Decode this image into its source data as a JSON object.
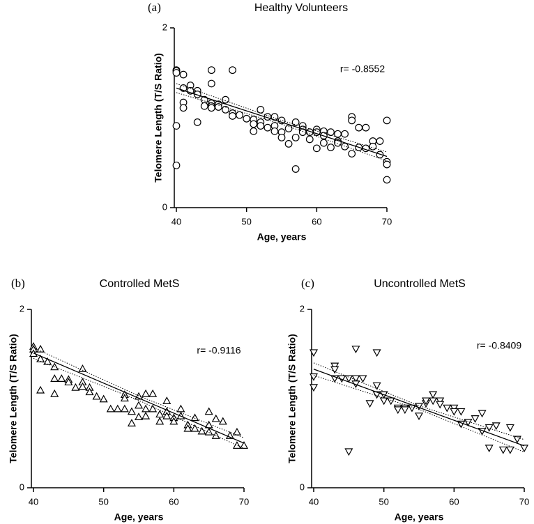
{
  "chart_data": [
    {
      "type": "scatter",
      "panel_label": "(a)",
      "title": "Healthy Volunteers",
      "xlabel": "Age, years",
      "ylabel": "Telomere Length (T/S Ratio)",
      "annotation": "r= -0.8552",
      "marker": "circle",
      "color": "#000000",
      "xlim": [
        40,
        70
      ],
      "ylim": [
        0,
        2
      ],
      "xticks": [
        40,
        50,
        60,
        70
      ],
      "yticks": [
        0,
        2
      ],
      "x": [
        40,
        40,
        40,
        40,
        40,
        41,
        41,
        41,
        41,
        42,
        42,
        43,
        43,
        43,
        44,
        44,
        45,
        45,
        45,
        45,
        45,
        46,
        46,
        47,
        47,
        48,
        48,
        48,
        49,
        50,
        51,
        51,
        51,
        52,
        52,
        52,
        53,
        53,
        54,
        54,
        54,
        55,
        55,
        55,
        56,
        56,
        57,
        57,
        57,
        58,
        58,
        58,
        59,
        59,
        60,
        60,
        60,
        61,
        61,
        61,
        62,
        62,
        63,
        63,
        63,
        64,
        64,
        65,
        65,
        65,
        66,
        66,
        67,
        67,
        68,
        68,
        69,
        69,
        70,
        70,
        70,
        70
      ],
      "y": [
        1.53,
        1.52,
        1.5,
        0.91,
        0.47,
        1.48,
        1.33,
        1.17,
        1.11,
        1.36,
        1.3,
        1.3,
        1.26,
        0.95,
        1.2,
        1.13,
        1.53,
        1.38,
        1.16,
        1.13,
        1.11,
        1.15,
        1.12,
        1.2,
        1.09,
        1.53,
        1.05,
        1.02,
        1.03,
        0.99,
        0.98,
        0.93,
        0.85,
        1.09,
        0.95,
        0.91,
        1.01,
        0.89,
        1.01,
        0.91,
        0.85,
        0.97,
        0.84,
        0.78,
        0.88,
        0.71,
        0.95,
        0.78,
        0.43,
        0.91,
        0.87,
        0.84,
        0.84,
        0.76,
        0.87,
        0.84,
        0.66,
        0.85,
        0.8,
        0.72,
        0.84,
        0.67,
        0.82,
        0.74,
        0.72,
        0.82,
        0.68,
        1.01,
        0.97,
        0.6,
        0.89,
        0.67,
        0.89,
        0.66,
        0.74,
        0.68,
        0.74,
        0.59,
        0.97,
        0.51,
        0.48,
        0.31
      ],
      "fit": {
        "x": [
          40,
          70
        ],
        "y": [
          1.33,
          0.57
        ]
      },
      "band": {
        "x": [
          40,
          55,
          70
        ],
        "upper": [
          1.38,
          0.97,
          0.62
        ],
        "lower": [
          1.28,
          0.93,
          0.52
        ]
      }
    },
    {
      "type": "scatter",
      "panel_label": "(b)",
      "title": "Controlled MetS",
      "xlabel": "Age, years",
      "ylabel": "Telomere Length (T/S Ratio)",
      "annotation": "r= -0.9116",
      "marker": "triangle-up",
      "color": "#000000",
      "xlim": [
        40,
        70
      ],
      "ylim": [
        0,
        2
      ],
      "xticks": [
        40,
        50,
        60,
        70
      ],
      "yticks": [
        0,
        2
      ],
      "x": [
        40,
        40,
        40,
        41,
        41,
        41,
        42,
        43,
        43,
        43,
        44,
        45,
        45,
        46,
        47,
        47,
        47,
        48,
        48,
        49,
        50,
        51,
        52,
        53,
        53,
        53,
        54,
        54,
        55,
        55,
        55,
        56,
        56,
        56,
        57,
        57,
        58,
        58,
        59,
        59,
        59,
        60,
        60,
        61,
        61,
        62,
        62,
        63,
        63,
        64,
        65,
        65,
        65,
        66,
        66,
        67,
        68,
        69,
        69,
        70
      ],
      "y": [
        1.58,
        1.55,
        1.5,
        1.55,
        1.44,
        1.09,
        1.41,
        1.35,
        1.22,
        1.05,
        1.22,
        1.21,
        1.18,
        1.12,
        1.33,
        1.18,
        1.13,
        1.12,
        1.07,
        1.02,
        0.99,
        0.88,
        0.88,
        1.04,
        1.0,
        0.88,
        0.85,
        0.72,
        1.02,
        0.92,
        0.79,
        1.05,
        0.88,
        0.8,
        1.05,
        0.88,
        0.82,
        0.74,
        0.97,
        0.85,
        0.8,
        0.78,
        0.74,
        0.88,
        0.8,
        0.7,
        0.66,
        0.78,
        0.66,
        0.63,
        0.85,
        0.7,
        0.62,
        0.77,
        0.58,
        0.74,
        0.58,
        0.62,
        0.47,
        0.47
      ],
      "fit": {
        "x": [
          40,
          70
        ],
        "y": [
          1.51,
          0.5
        ]
      },
      "band": {
        "x": [
          40,
          55,
          70
        ],
        "upper": [
          1.57,
          1.03,
          0.56
        ],
        "lower": [
          1.45,
          0.98,
          0.44
        ]
      }
    },
    {
      "type": "scatter",
      "panel_label": "(c)",
      "title": "Uncontrolled MetS",
      "xlabel": "Age, years",
      "ylabel": "Telomere Length (T/S Ratio)",
      "annotation": "r= -0.8409",
      "marker": "triangle-down",
      "color": "#000000",
      "xlim": [
        40,
        70
      ],
      "ylim": [
        0,
        2
      ],
      "xticks": [
        40,
        50,
        60,
        70
      ],
      "yticks": [
        0,
        2
      ],
      "x": [
        40,
        40,
        40,
        43,
        43,
        43,
        44,
        45,
        45,
        46,
        46,
        46,
        47,
        48,
        49,
        49,
        49,
        50,
        50,
        51,
        52,
        52,
        53,
        53,
        54,
        55,
        55,
        56,
        56,
        57,
        57,
        58,
        58,
        59,
        60,
        60,
        61,
        61,
        62,
        63,
        64,
        64,
        65,
        65,
        66,
        67,
        68,
        68,
        69,
        70
      ],
      "y": [
        1.52,
        1.25,
        1.13,
        1.37,
        1.33,
        1.23,
        1.23,
        1.23,
        0.41,
        1.56,
        1.23,
        1.17,
        1.23,
        0.95,
        1.52,
        1.15,
        1.05,
        1.05,
        0.98,
        0.98,
        0.9,
        0.88,
        0.9,
        0.88,
        0.9,
        0.92,
        0.81,
        0.95,
        0.98,
        1.05,
        0.98,
        0.98,
        0.94,
        0.9,
        0.9,
        0.86,
        0.86,
        0.72,
        0.74,
        0.78,
        0.84,
        0.64,
        0.68,
        0.45,
        0.7,
        0.43,
        0.68,
        0.43,
        0.55,
        0.45
      ],
      "fit": {
        "x": [
          40,
          70
        ],
        "y": [
          1.33,
          0.47
        ]
      },
      "band": {
        "x": [
          40,
          55,
          70
        ],
        "upper": [
          1.4,
          0.92,
          0.54
        ],
        "lower": [
          1.26,
          0.88,
          0.4
        ]
      }
    }
  ]
}
